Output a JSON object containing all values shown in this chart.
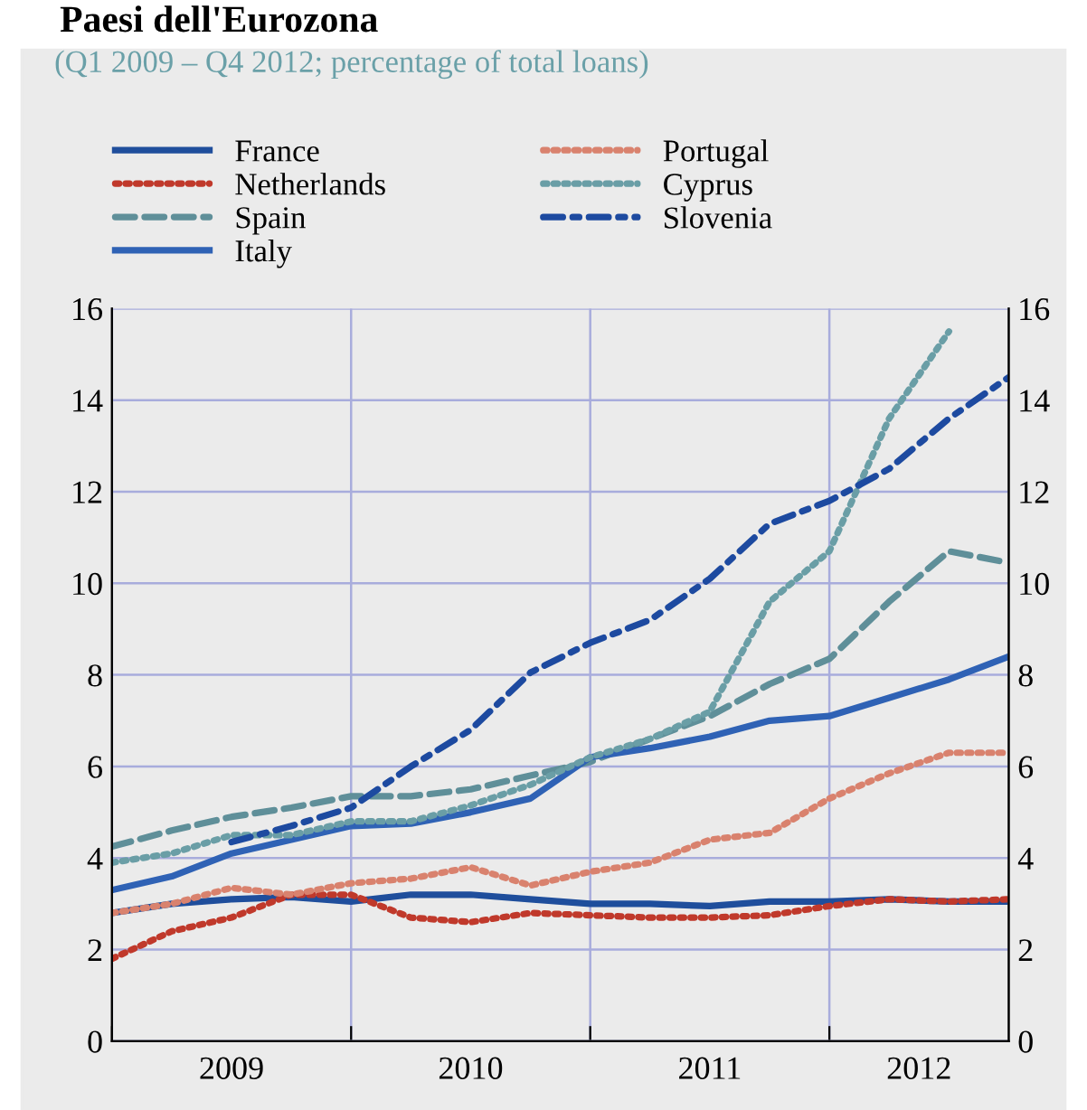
{
  "chart_data": {
    "type": "line",
    "title": "Paesi dell'Eurozona",
    "subtitle": "(Q1 2009 – Q4 2012; percentage of total loans)",
    "x": [
      2009,
      2009.25,
      2009.5,
      2009.75,
      2010,
      2010.25,
      2010.5,
      2010.75,
      2011,
      2011.25,
      2011.5,
      2011.75,
      2012,
      2012.25,
      2012.5,
      2012.75
    ],
    "series": [
      {
        "name": "France",
        "color": "#1f4e9c",
        "line_style": "solid",
        "values": [
          2.8,
          3.0,
          3.1,
          3.15,
          3.05,
          3.2,
          3.2,
          3.1,
          3.0,
          3.0,
          2.95,
          3.05,
          3.05,
          3.1,
          3.05,
          3.05
        ]
      },
      {
        "name": "Netherlands",
        "color": "#c0392b",
        "line_style": "dotted",
        "values": [
          1.8,
          2.4,
          2.7,
          3.2,
          3.2,
          2.7,
          2.6,
          2.8,
          2.75,
          2.7,
          2.7,
          2.75,
          2.95,
          3.1,
          3.05,
          3.1
        ]
      },
      {
        "name": "Spain",
        "color": "#5f8f99",
        "line_style": "dashed",
        "values": [
          4.25,
          4.6,
          4.9,
          5.1,
          5.35,
          5.35,
          5.5,
          5.8,
          6.1,
          6.6,
          7.1,
          7.8,
          8.35,
          9.6,
          10.7,
          10.45
        ]
      },
      {
        "name": "Italy",
        "color": "#2f62b5",
        "line_style": "solid",
        "values": [
          3.3,
          3.6,
          4.1,
          4.4,
          4.7,
          4.75,
          5.0,
          5.3,
          6.2,
          6.4,
          6.65,
          7.0,
          7.1,
          7.5,
          7.9,
          8.4
        ]
      },
      {
        "name": "Portugal",
        "color": "#d9826e",
        "line_style": "dotted",
        "values": [
          2.8,
          3.0,
          3.35,
          3.2,
          3.45,
          3.55,
          3.8,
          3.4,
          3.7,
          3.9,
          4.4,
          4.55,
          5.3,
          5.85,
          6.3,
          6.3
        ]
      },
      {
        "name": "Cyprus",
        "color": "#6a9ea6",
        "line_style": "dotted",
        "values": [
          3.9,
          4.1,
          4.5,
          4.5,
          4.8,
          4.8,
          5.15,
          5.6,
          6.2,
          6.6,
          7.2,
          9.6,
          10.7,
          13.6,
          15.5,
          null
        ]
      },
      {
        "name": "Slovenia",
        "color": "#1d4aa0",
        "line_style": "dashdot",
        "values": [
          null,
          null,
          4.35,
          4.7,
          5.1,
          6.0,
          6.8,
          8.05,
          8.7,
          9.2,
          10.1,
          11.3,
          11.8,
          12.5,
          13.6,
          14.5
        ]
      }
    ],
    "xlim": [
      2009,
      2012.75
    ],
    "xticks": [
      {
        "value": 2009,
        "label": null
      },
      {
        "value": 2010,
        "label": null
      },
      {
        "value": 2011,
        "label": null
      },
      {
        "value": 2012,
        "label": null
      },
      {
        "value": 2009.5,
        "label": "2009"
      },
      {
        "value": 2010.5,
        "label": "2010"
      },
      {
        "value": 2011.5,
        "label": "2011"
      },
      {
        "value": 2012.375,
        "label": "2012"
      }
    ],
    "ylim": [
      0,
      16
    ],
    "yticks": [
      0,
      2,
      4,
      6,
      8,
      10,
      12,
      14,
      16
    ],
    "y2lim": [
      0,
      16
    ],
    "y2ticks": [
      0,
      2,
      4,
      6,
      8,
      10,
      12,
      14,
      16
    ],
    "grid": true,
    "legend": "top left"
  }
}
